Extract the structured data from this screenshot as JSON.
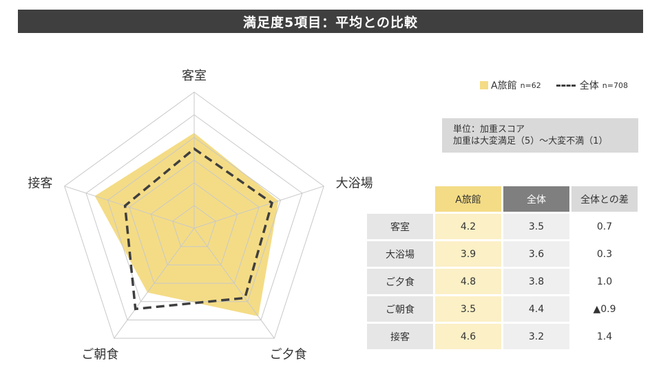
{
  "title": "満足度5項目：平均との比較",
  "legend": {
    "series_a": "A旅館",
    "series_a_n": "n=62",
    "series_all": "全体",
    "series_all_n": "n=708"
  },
  "unit": {
    "line1": "単位：加重スコア",
    "line2": "加重は大変満足（5）～大変不満（1）"
  },
  "table": {
    "headers": [
      "A旅館",
      "全体",
      "全体との差"
    ],
    "rows": [
      {
        "label": "客室",
        "a": "4.2",
        "all": "3.5",
        "diff": "0.7"
      },
      {
        "label": "大浴場",
        "a": "3.9",
        "all": "3.6",
        "diff": "0.3"
      },
      {
        "label": "ご夕食",
        "a": "4.8",
        "all": "3.8",
        "diff": "1.0"
      },
      {
        "label": "ご朝食",
        "a": "3.5",
        "all": "4.4",
        "diff": "▲0.9"
      },
      {
        "label": "接客",
        "a": "4.6",
        "all": "3.2",
        "diff": "1.4"
      }
    ]
  },
  "colors": {
    "series_a_fill": "#f4dc86",
    "series_all_line": "#3f3f3f",
    "title_bg": "#3f3f3f"
  },
  "chart_data": {
    "type": "radar",
    "categories": [
      "客室",
      "大浴場",
      "ご夕食",
      "ご朝食",
      "接客"
    ],
    "series": [
      {
        "name": "A旅館",
        "values": [
          4.2,
          3.9,
          4.8,
          3.5,
          4.6
        ],
        "style": "filled"
      },
      {
        "name": "全体",
        "values": [
          3.5,
          3.6,
          3.8,
          4.4,
          3.2
        ],
        "style": "dashed"
      }
    ],
    "range": [
      0,
      6
    ],
    "grid_levels": 6
  }
}
